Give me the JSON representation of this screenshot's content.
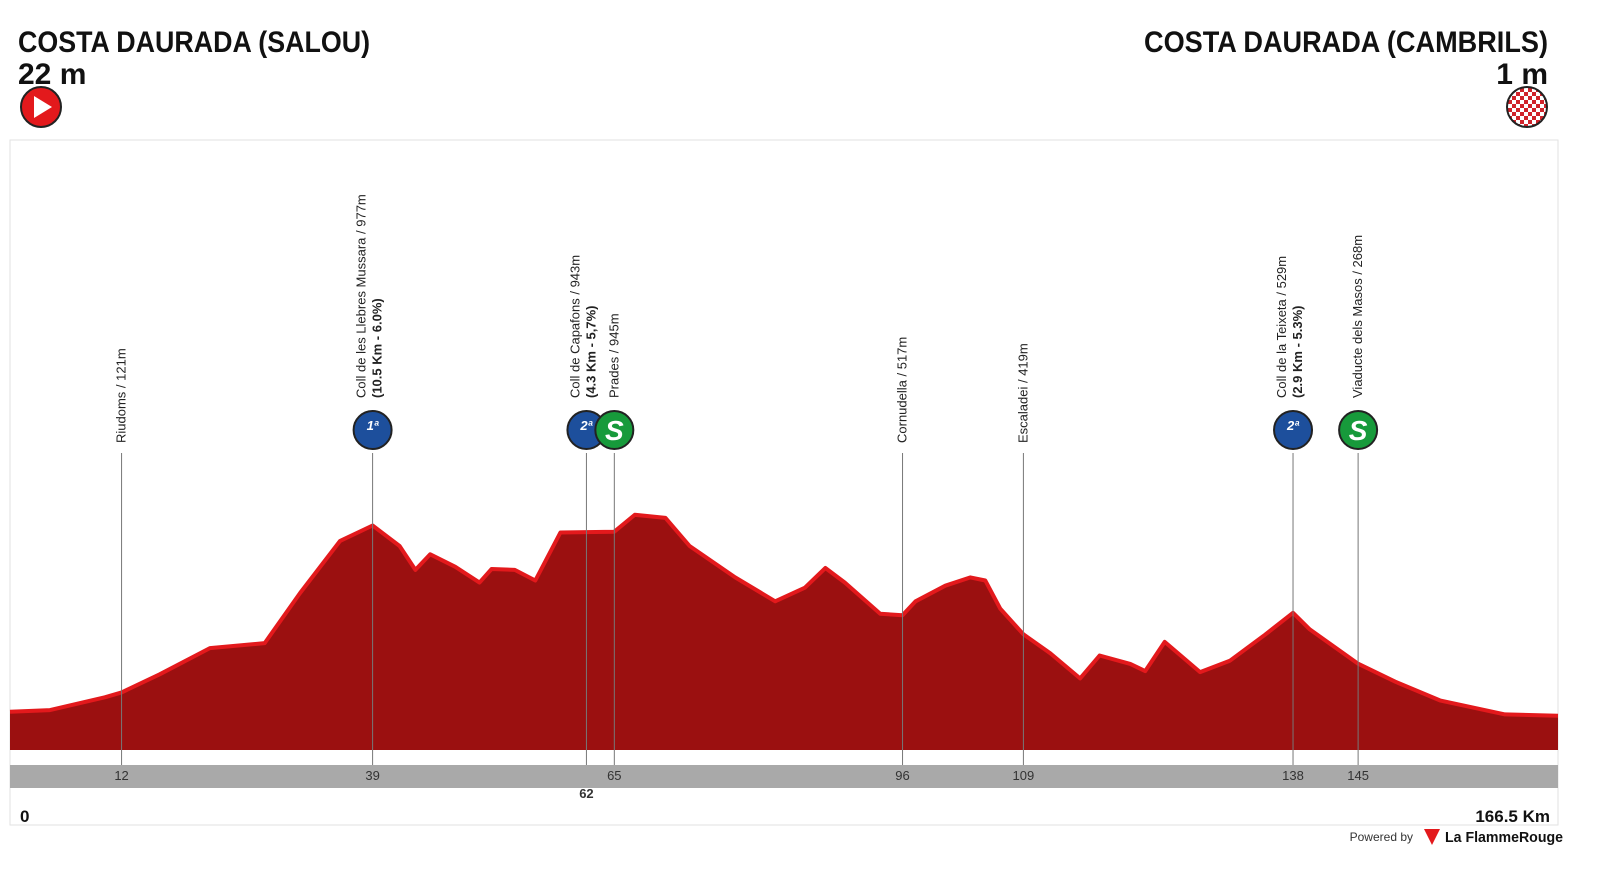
{
  "chart_data": {
    "type": "area",
    "start": {
      "name": "COSTA DAURADA (SALOU)",
      "altitude": "22 m"
    },
    "finish": {
      "name": "COSTA DAURADA (CAMBRILS)",
      "altitude": "1 m"
    },
    "x": [
      0,
      4.3,
      10.2,
      12,
      16.1,
      21.5,
      27.4,
      31.2,
      35.5,
      39,
      41.9,
      43.6,
      45.2,
      47.9,
      50.5,
      51.8,
      54.3,
      56.5,
      59.2,
      62,
      65,
      67.2,
      70.5,
      73.1,
      78,
      82.3,
      85.5,
      87.7,
      89.8,
      93.6,
      96,
      97.4,
      100.6,
      103.3,
      104.9,
      106.5,
      109,
      111.9,
      115.1,
      117.2,
      120.5,
      122.1,
      124.2,
      128,
      131.2,
      135,
      138,
      139.8,
      145,
      149,
      153.8,
      160.8,
      166.5
    ],
    "values": [
      22,
      30,
      96,
      121,
      214,
      348,
      374,
      631,
      898,
      977,
      872,
      749,
      829,
      765,
      684,
      754,
      749,
      695,
      941,
      943,
      945,
      1032,
      1016,
      872,
      711,
      588,
      658,
      759,
      684,
      524,
      517,
      588,
      668,
      711,
      695,
      551,
      419,
      321,
      193,
      310,
      267,
      230,
      380,
      225,
      283,
      417,
      529,
      444,
      268,
      176,
      80,
      8,
      1
    ],
    "color": "#9b1010",
    "edge_color": "#e3191c",
    "xlim": [
      0,
      166.5
    ],
    "ylim": [
      0,
      3000
    ],
    "xticks": [
      0,
      {
        "value": 166.5,
        "label": "166.5 Km"
      }
    ],
    "waypoints": [
      {
        "label": "Riudoms / 121m",
        "km": 12
      },
      {
        "label": "Coll de les Llebres Mussara / 977m",
        "detail": "(10.5 Km - 6.0%)",
        "km": 39,
        "icon": "1ª",
        "icon_color": "#1d4f9c"
      },
      {
        "label": "Coll de Capafons / 943m",
        "detail": "(4.3 Km - 5,7%)",
        "km": 62,
        "icon": "2ª",
        "icon_color": "#1d4f9c"
      },
      {
        "label": "Prades / 945m",
        "km": 65,
        "icon": "S",
        "icon_color": "#179a3b"
      },
      {
        "label": "Cornudella / 517m",
        "km": 96
      },
      {
        "label": "Escaladei / 419m",
        "km": 109
      },
      {
        "label": "Coll de la Teixeta / 529m",
        "detail": "(2.9 Km - 5.3%)",
        "km": 138,
        "icon": "2ª",
        "icon_color": "#1d4f9c"
      },
      {
        "label": "Viaducte dels Masos / 268m",
        "km": 145,
        "icon": "S",
        "icon_color": "#179a3b"
      }
    ],
    "footer": {
      "powered": "Powered by",
      "brand": "La FlammeRouge"
    }
  }
}
